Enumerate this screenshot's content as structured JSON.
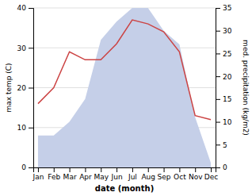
{
  "chart_data": {
    "type": "line",
    "categories": [
      "Jan",
      "Feb",
      "Mar",
      "Apr",
      "May",
      "Jun",
      "Jul",
      "Aug",
      "Sep",
      "Oct",
      "Nov",
      "Dec"
    ],
    "series": [
      {
        "type": "area",
        "color": "#c5cfe8",
        "axis": "y2",
        "values": [
          7,
          7,
          10,
          15,
          28,
          32,
          35,
          35,
          30,
          27,
          11,
          1
        ]
      },
      {
        "type": "line",
        "color": "#cc4444",
        "values": [
          16,
          20,
          29,
          27,
          27,
          31,
          37,
          36,
          34,
          29,
          13,
          12
        ]
      }
    ],
    "ylim": [
      0,
      40
    ],
    "yticks": [
      0,
      10,
      20,
      30,
      40
    ],
    "y2lim": [
      0,
      35
    ],
    "y2ticks": [
      0,
      5,
      10,
      15,
      20,
      25,
      30,
      35
    ],
    "xlabel": "date (month)",
    "ylabel": "max temp (C)",
    "y2label": "med. precipitation (kg/m2)",
    "grid": true
  }
}
